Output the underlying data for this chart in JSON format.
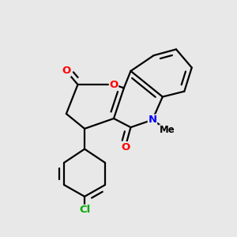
{
  "bg_color": "#e8e8e8",
  "bond_color": "#000000",
  "O_color": "#ff0000",
  "N_color": "#0000ff",
  "Cl_color": "#00aa00",
  "line_width": 1.6,
  "figsize": [
    3.0,
    3.0
  ],
  "dpi": 100,
  "xlim": [
    0.0,
    3.0
  ],
  "ylim": [
    0.0,
    3.0
  ]
}
